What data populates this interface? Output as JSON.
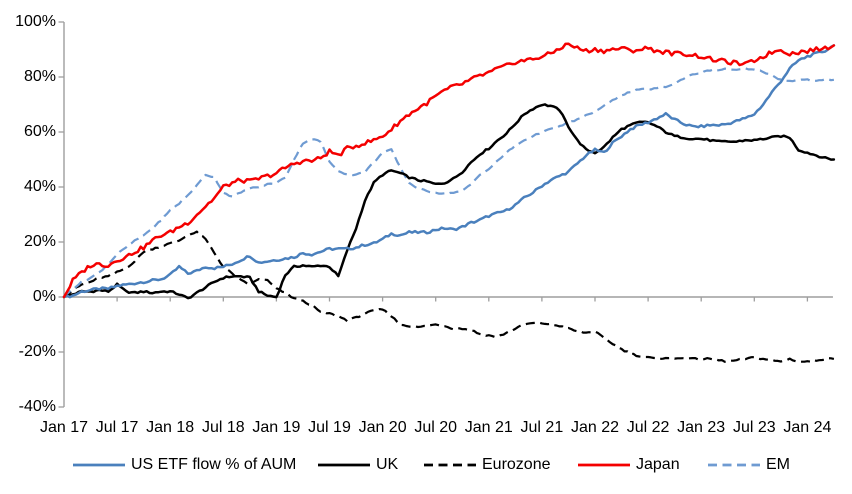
{
  "chart_data": {
    "type": "line",
    "title": "",
    "xlabel": "",
    "ylabel": "",
    "description": "Cumulative ETF flow as % of AUM by region, monthly, Jan 2017 - Apr 2024",
    "ylim": [
      -40,
      100
    ],
    "x_total_months": 87,
    "x_start": "Jan 17",
    "x_end": "Apr 24",
    "grid": "zero line only, no gridlines",
    "legend_position": "bottom",
    "axis_color": "#9e9e9e",
    "text_color": "#000000",
    "y_ticks": [
      {
        "v": 100,
        "label": "100%"
      },
      {
        "v": 80,
        "label": "80%"
      },
      {
        "v": 60,
        "label": "60%"
      },
      {
        "v": 40,
        "label": "40%"
      },
      {
        "v": 20,
        "label": "20%"
      },
      {
        "v": 0,
        "label": "0%"
      },
      {
        "v": -20,
        "label": "-20%"
      },
      {
        "v": -40,
        "label": "-40%"
      }
    ],
    "x_ticks": [
      {
        "m": 0,
        "label": "Jan 17"
      },
      {
        "m": 6,
        "label": "Jul 17"
      },
      {
        "m": 12,
        "label": "Jan 18"
      },
      {
        "m": 18,
        "label": "Jul 18"
      },
      {
        "m": 24,
        "label": "Jan 19"
      },
      {
        "m": 30,
        "label": "Jul 19"
      },
      {
        "m": 36,
        "label": "Jan 20"
      },
      {
        "m": 42,
        "label": "Jul 20"
      },
      {
        "m": 48,
        "label": "Jan 21"
      },
      {
        "m": 54,
        "label": "Jul 21"
      },
      {
        "m": 60,
        "label": "Jan 22"
      },
      {
        "m": 66,
        "label": "Jul 22"
      },
      {
        "m": 72,
        "label": "Jan 23"
      },
      {
        "m": 78,
        "label": "Jul 23"
      },
      {
        "m": 84,
        "label": "Jan 24"
      }
    ],
    "series": [
      {
        "name": "US ETF flow % of AUM",
        "color": "#4a80bd",
        "style": "solid",
        "jitter": 0.45,
        "values": [
          0,
          0.5,
          2,
          2.5,
          3,
          3,
          4,
          4.5,
          5,
          5.5,
          6,
          6.5,
          8,
          11,
          8.5,
          9.5,
          11,
          10.5,
          11,
          12,
          13.5,
          15,
          12.5,
          13,
          13.5,
          14,
          14.5,
          16,
          15.5,
          16.5,
          17.5,
          17.5,
          17.5,
          18,
          19,
          19.5,
          21,
          23,
          22.5,
          23.5,
          23.5,
          23.5,
          24.5,
          25,
          24.5,
          25.5,
          27,
          28,
          29.5,
          30.5,
          31.5,
          33.5,
          36,
          38,
          40.5,
          42.5,
          44,
          45.5,
          48.5,
          51.5,
          53.5,
          52.5,
          56,
          58.5,
          61,
          62.5,
          63.5,
          65,
          66.5,
          64.5,
          63,
          62,
          62,
          62.5,
          62.5,
          63,
          64,
          65,
          66.5,
          70,
          74.5,
          78.5,
          83,
          86,
          87.5,
          88.5,
          89.5,
          91.5
        ]
      },
      {
        "name": "UK",
        "color": "#000000",
        "style": "solid",
        "jitter": 0.35,
        "values": [
          0,
          1,
          2,
          2,
          2.5,
          2,
          4.5,
          2,
          1.5,
          2,
          1.5,
          2,
          2,
          1,
          -0.5,
          1.5,
          3.5,
          5.5,
          7,
          7.5,
          7.5,
          7,
          2,
          0.5,
          0,
          8,
          11,
          11.5,
          11,
          11.5,
          11,
          7.5,
          17,
          25,
          35,
          41.5,
          44.5,
          46,
          45,
          43.5,
          42.5,
          42,
          41,
          41.5,
          43,
          45.5,
          49,
          52,
          54,
          57,
          59.5,
          63,
          66.5,
          68.5,
          70,
          69.5,
          68,
          62,
          57,
          53.5,
          52.5,
          54.5,
          58,
          61,
          62.5,
          63.5,
          63.5,
          62,
          60,
          58.5,
          58,
          57.5,
          57.5,
          57,
          56.5,
          56.5,
          56.5,
          57,
          57,
          57.5,
          58,
          58.5,
          58,
          53.5,
          52.5,
          51.5,
          50.5,
          50
        ]
      },
      {
        "name": "Eurozone",
        "color": "#000000",
        "style": "dashed",
        "jitter": 0.3,
        "values": [
          0,
          2.5,
          4.5,
          5.5,
          7,
          7.5,
          9,
          10.5,
          13,
          16.5,
          17.5,
          18.5,
          19.5,
          20.5,
          22.5,
          23.5,
          21,
          16,
          11,
          8.5,
          6,
          4.5,
          6.5,
          6,
          3,
          1.5,
          -0.5,
          -1.5,
          -3,
          -5.5,
          -6,
          -7,
          -8.5,
          -7.5,
          -6,
          -5,
          -4.5,
          -7,
          -10,
          -10.5,
          -11,
          -10.5,
          -10,
          -10.5,
          -11.5,
          -11.5,
          -12,
          -13.5,
          -14,
          -14.5,
          -13,
          -11.5,
          -10,
          -9.5,
          -9.5,
          -10,
          -10.5,
          -11.5,
          -12.5,
          -13,
          -12.5,
          -15,
          -17,
          -19,
          -20.5,
          -21.5,
          -22,
          -22.5,
          -22,
          -22.5,
          -22,
          -22.5,
          -22.5,
          -22.5,
          -23,
          -23.5,
          -23,
          -22.5,
          -22,
          -22.5,
          -23,
          -23.5,
          -22.5,
          -23.5,
          -23.5,
          -23,
          -22.5,
          -22.5
        ]
      },
      {
        "name": "Japan",
        "color": "#f40000",
        "style": "solid",
        "jitter": 0.8,
        "values": [
          0,
          6,
          9,
          11.5,
          12,
          11.5,
          13.5,
          14.5,
          16.5,
          18,
          20.5,
          22.5,
          23.5,
          25.5,
          27,
          30,
          33,
          36,
          40,
          41.5,
          42.5,
          42,
          43,
          44,
          45,
          47,
          48.5,
          49.5,
          49.5,
          50.5,
          53,
          51.5,
          54,
          55,
          56,
          57,
          58.5,
          61,
          64,
          66.5,
          68.5,
          70.5,
          73,
          75,
          76.5,
          77.5,
          79,
          80.5,
          81.5,
          83,
          84,
          85.5,
          86,
          86.5,
          87.5,
          88.5,
          90.5,
          92,
          90.5,
          89.5,
          90,
          89.5,
          90,
          90.5,
          89.5,
          90,
          90.5,
          89.5,
          89,
          88.5,
          88.5,
          88,
          87.5,
          86.5,
          86,
          85.5,
          85,
          84.5,
          86,
          87.5,
          89,
          90,
          88.5,
          89,
          89.5,
          90,
          90.5,
          91.5
        ]
      },
      {
        "name": "EM",
        "color": "#6f9bd2",
        "style": "dashed",
        "jitter": 0.25,
        "values": [
          0,
          3,
          5.5,
          7,
          9,
          12,
          15.5,
          18,
          20.5,
          22.5,
          25,
          28,
          31.5,
          34,
          37,
          40.5,
          44.5,
          43.5,
          38,
          36.5,
          38,
          39.5,
          40,
          41,
          41.5,
          43.5,
          50,
          56,
          57.5,
          56.5,
          49,
          46,
          44.5,
          44.5,
          45.5,
          49,
          52.5,
          53.5,
          47,
          41.5,
          39.5,
          38.5,
          38,
          37.5,
          38,
          38.5,
          41,
          44.5,
          46.5,
          49.5,
          52.5,
          55,
          57,
          58.5,
          60,
          61,
          62,
          63.5,
          64.5,
          66,
          67.5,
          69.5,
          71.5,
          73.5,
          74.5,
          75.5,
          75.5,
          76,
          76.5,
          77.5,
          79.5,
          81,
          81.5,
          82.5,
          82.5,
          83,
          82.5,
          83,
          82.5,
          82,
          80.5,
          79,
          78.5,
          79,
          79,
          78.5,
          79,
          79
        ]
      }
    ]
  }
}
